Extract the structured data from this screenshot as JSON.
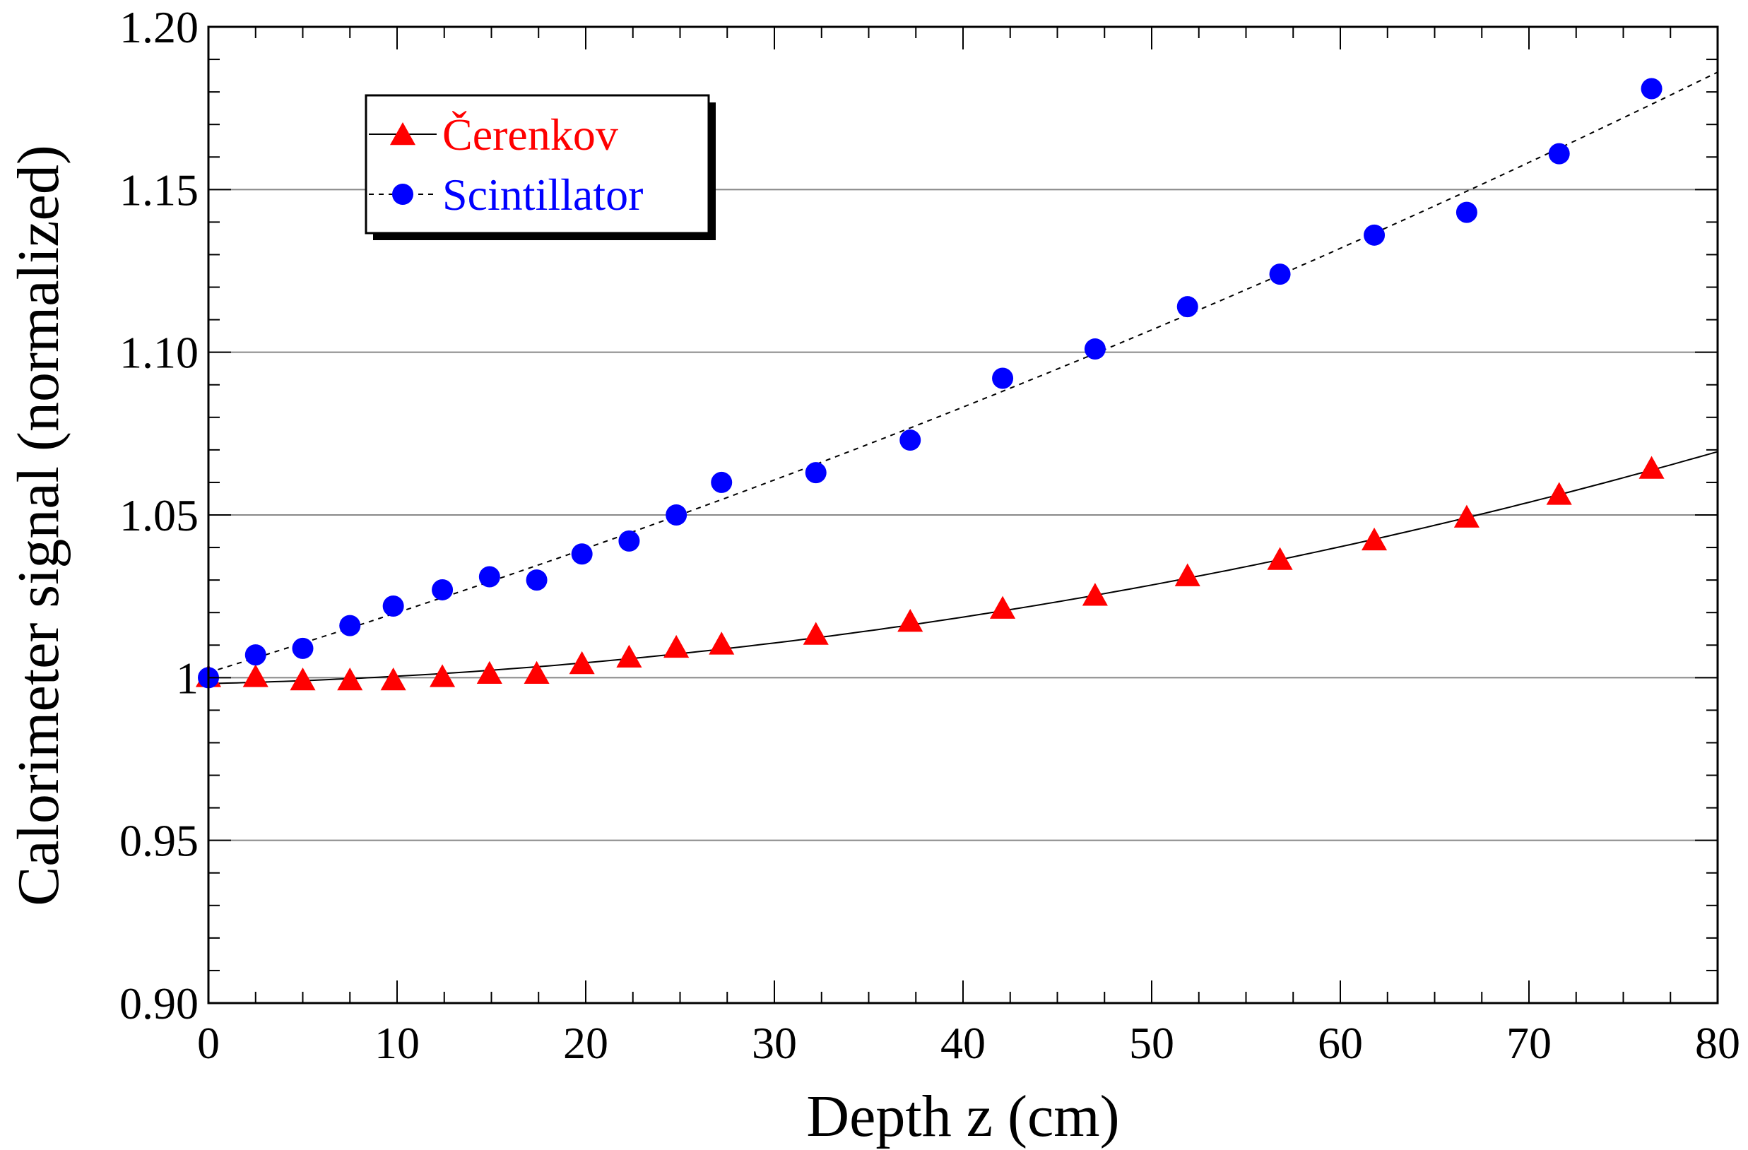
{
  "colors": {
    "cerenkov": "#ff0000",
    "scintillator": "#0000ff",
    "fit": "#000000",
    "grid": "#888888",
    "axis": "#000000"
  },
  "chart_data": {
    "type": "scatter",
    "xlabel": "Depth z (cm)",
    "ylabel": "Calorimeter signal (normalized)",
    "xlim": [
      0,
      80
    ],
    "ylim": [
      0.9,
      1.2
    ],
    "x_ticks": [
      0,
      10,
      20,
      30,
      40,
      50,
      60,
      70,
      80
    ],
    "x_tick_labels": [
      "0",
      "10",
      "20",
      "30",
      "40",
      "50",
      "60",
      "70",
      "80"
    ],
    "y_ticks": [
      0.9,
      0.95,
      1.0,
      1.05,
      1.1,
      1.15,
      1.2
    ],
    "y_tick_labels": [
      "0.90",
      "0.95",
      "1",
      "1.05",
      "1.10",
      "1.15",
      "1.20"
    ],
    "grid": "horizontal",
    "legend_position": "top-left",
    "series": [
      {
        "name": "Čerenkov",
        "marker": "triangle",
        "color": "#ff0000",
        "fit_line": "solid",
        "x": [
          0,
          2.5,
          5,
          7.5,
          9.8,
          12.4,
          14.9,
          17.4,
          19.8,
          22.3,
          24.8,
          27.2,
          32.2,
          37.2,
          42.1,
          47.0,
          51.9,
          56.8,
          61.8,
          66.7,
          71.6,
          76.5
        ],
        "y": [
          1.0,
          1.0,
          0.999,
          0.999,
          0.999,
          1.0,
          1.001,
          1.001,
          1.004,
          1.006,
          1.009,
          1.01,
          1.013,
          1.017,
          1.021,
          1.025,
          1.031,
          1.036,
          1.042,
          1.049,
          1.056,
          1.064
        ]
      },
      {
        "name": "Scintillator",
        "marker": "circle",
        "color": "#0000ff",
        "fit_line": "dotted",
        "x": [
          0,
          2.5,
          5,
          7.5,
          9.8,
          12.4,
          14.9,
          17.4,
          19.8,
          22.3,
          24.8,
          27.2,
          32.2,
          37.2,
          42.1,
          47.0,
          51.9,
          56.8,
          61.8,
          66.7,
          71.6,
          76.5
        ],
        "y": [
          1.0,
          1.007,
          1.009,
          1.016,
          1.022,
          1.027,
          1.031,
          1.03,
          1.038,
          1.042,
          1.05,
          1.06,
          1.063,
          1.073,
          1.092,
          1.101,
          1.114,
          1.124,
          1.136,
          1.143,
          1.161,
          1.181
        ]
      }
    ]
  }
}
